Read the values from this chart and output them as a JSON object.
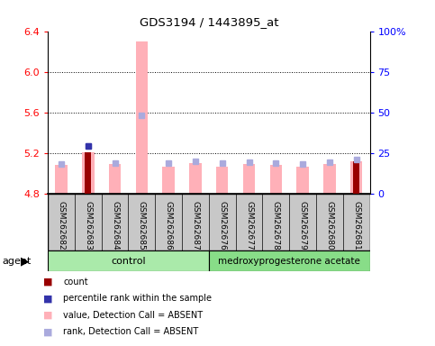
{
  "title": "GDS3194 / 1443895_at",
  "samples": [
    "GSM262682",
    "GSM262683",
    "GSM262684",
    "GSM262685",
    "GSM262686",
    "GSM262687",
    "GSM262676",
    "GSM262677",
    "GSM262678",
    "GSM262679",
    "GSM262680",
    "GSM262681"
  ],
  "values": [
    5.08,
    5.21,
    5.09,
    6.3,
    5.07,
    5.1,
    5.07,
    5.09,
    5.08,
    5.07,
    5.09,
    5.12
  ],
  "rank_dots": [
    5.09,
    5.27,
    5.1,
    5.57,
    5.1,
    5.12,
    5.1,
    5.11,
    5.1,
    5.09,
    5.11,
    5.14
  ],
  "is_dark_red": [
    false,
    true,
    false,
    false,
    false,
    false,
    false,
    false,
    false,
    false,
    false,
    true
  ],
  "has_blue_dot": [
    false,
    true,
    false,
    false,
    false,
    false,
    false,
    false,
    false,
    false,
    false,
    false
  ],
  "blue_dot_values": [
    0,
    5.27,
    0,
    0,
    0,
    0,
    0,
    0,
    0,
    0,
    0,
    0
  ],
  "count_top": [
    4.8,
    5.21,
    4.8,
    4.8,
    4.8,
    4.8,
    4.8,
    4.8,
    4.8,
    4.8,
    4.8,
    5.12
  ],
  "ymin": 4.8,
  "ymax": 6.4,
  "yticks_left": [
    4.8,
    5.2,
    5.6,
    6.0,
    6.4
  ],
  "yticks_right": [
    0,
    25,
    50,
    75,
    100
  ],
  "bar_base": 4.8,
  "pink_color": "#FFB0B8",
  "dark_red_color": "#990000",
  "blue_color": "#3333AA",
  "lavender_color": "#AAAADD",
  "gray_box_color": "#C8C8C8",
  "control_green": "#AAEAAA",
  "mpa_green": "#88DD88",
  "legend_items": [
    "count",
    "percentile rank within the sample",
    "value, Detection Call = ABSENT",
    "rank, Detection Call = ABSENT"
  ],
  "legend_colors": [
    "#990000",
    "#3333AA",
    "#FFB0B8",
    "#AAAADD"
  ]
}
